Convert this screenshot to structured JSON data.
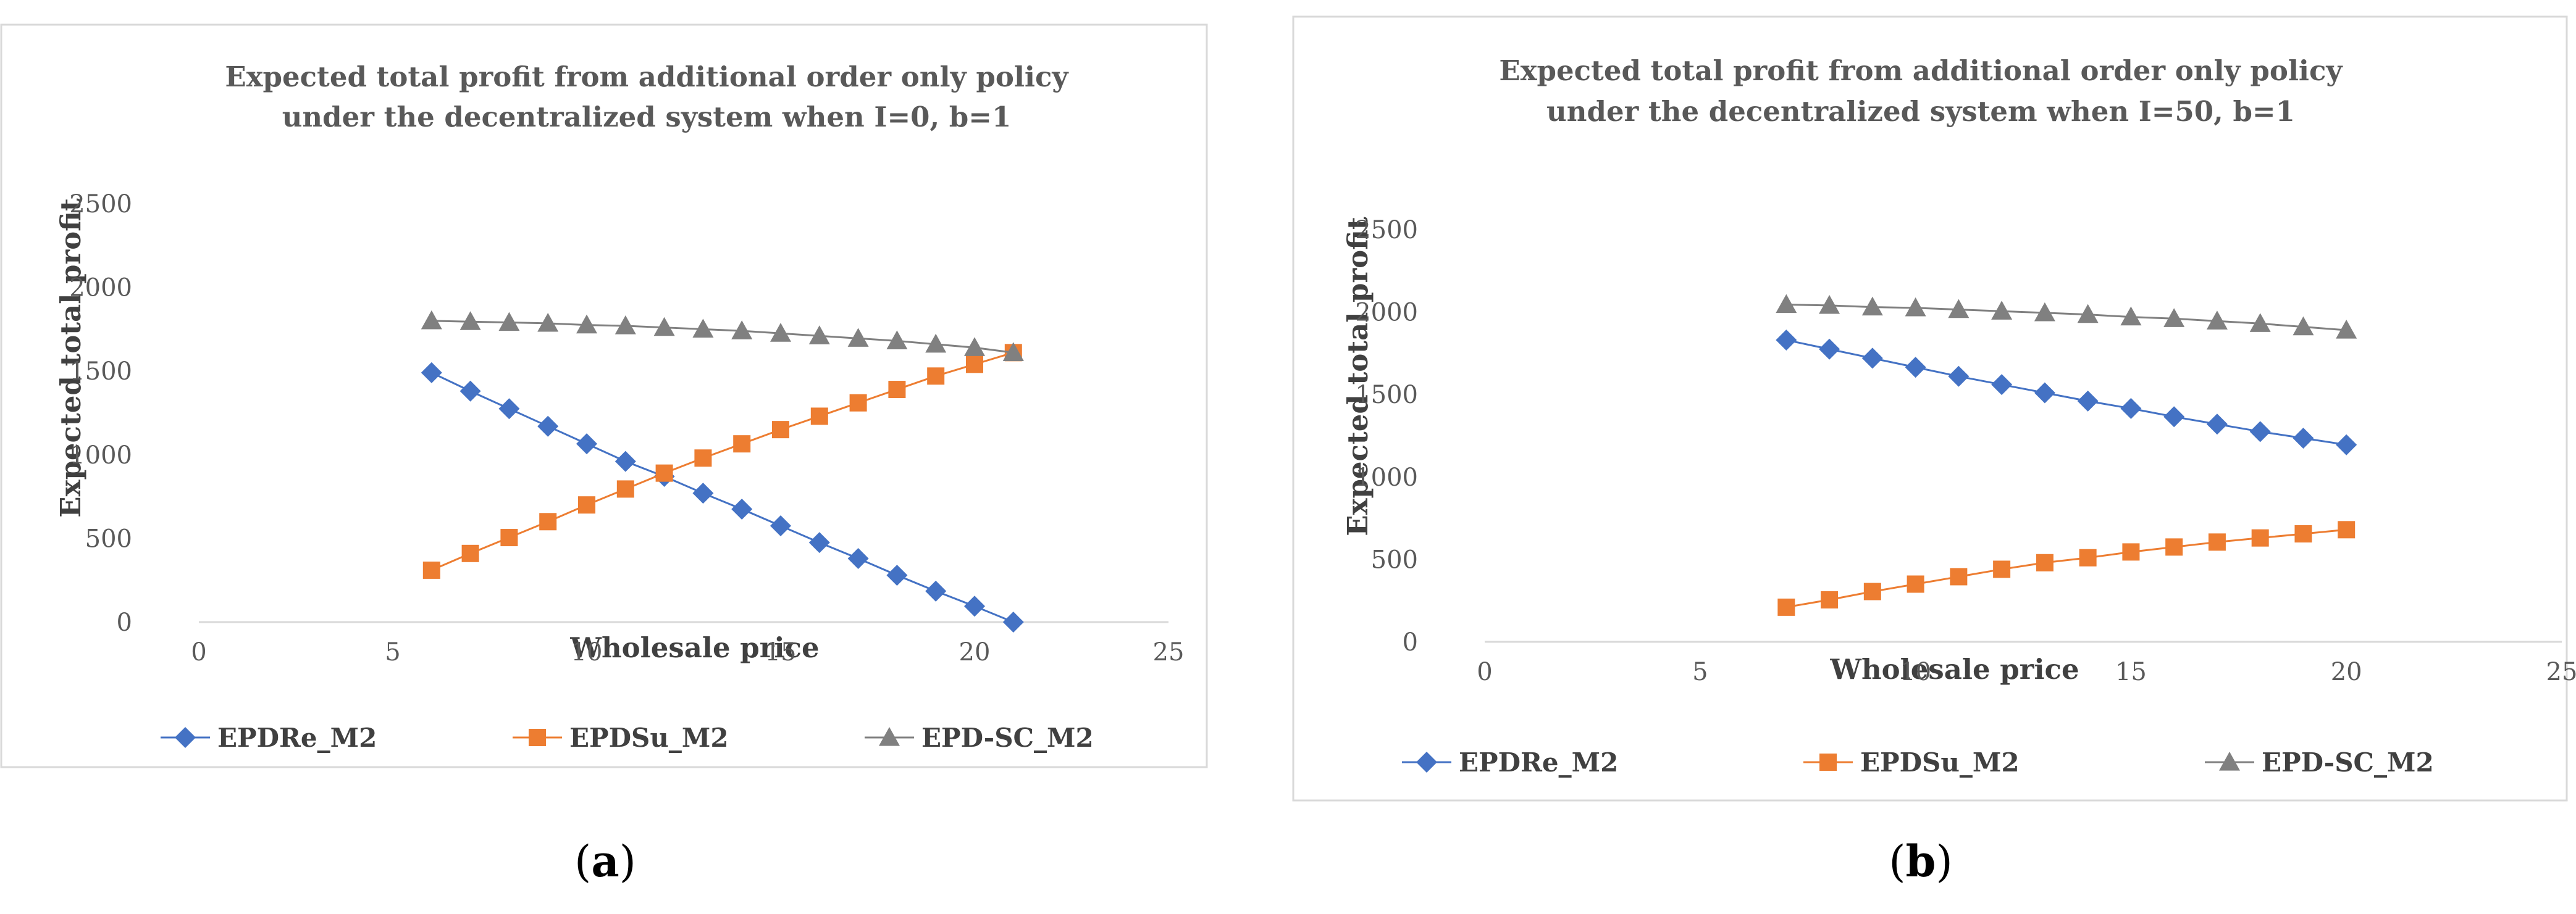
{
  "colors": {
    "EPDRe_M2": "#4472C4",
    "EPDSu_M2": "#ED7D31",
    "EPD-SC_M2": "#808080",
    "frame": "#D9D9D9",
    "axis": "#D9D9D9",
    "text": "#595959"
  },
  "panels": [
    {
      "caption_pre": "(",
      "caption_letter": "a",
      "caption_post": ")"
    },
    {
      "caption_pre": "(",
      "caption_letter": "b",
      "caption_post": ")"
    }
  ],
  "chart_data": [
    {
      "type": "line",
      "title_line1": "Expected total profit from additional order only policy",
      "title_line2": "under the decentralized system when I=0, b=1",
      "xlabel": "Wholesale price",
      "ylabel": "Expected total profit",
      "xlim": [
        0,
        25
      ],
      "ylim": [
        0,
        2500
      ],
      "xticks": [
        0,
        5,
        10,
        15,
        20,
        25
      ],
      "yticks": [
        0,
        500,
        1000,
        1500,
        2000,
        2500
      ],
      "grid": false,
      "legend_position": "bottom",
      "x": [
        6,
        7,
        8,
        9,
        10,
        11,
        12,
        13,
        14,
        15,
        16,
        17,
        18,
        19,
        20,
        21
      ],
      "series": [
        {
          "name": "EPDRe_M2",
          "marker": "diamond",
          "values": [
            1490,
            1380,
            1275,
            1170,
            1065,
            960,
            870,
            770,
            675,
            575,
            475,
            380,
            280,
            185,
            95,
            0
          ]
        },
        {
          "name": "EPDSu_M2",
          "marker": "square",
          "values": [
            310,
            410,
            505,
            600,
            700,
            795,
            890,
            980,
            1065,
            1150,
            1230,
            1310,
            1390,
            1470,
            1540,
            1610
          ]
        },
        {
          "name": "EPD-SC_M2",
          "marker": "triangle",
          "values": [
            1800,
            1795,
            1790,
            1785,
            1775,
            1770,
            1760,
            1750,
            1740,
            1725,
            1710,
            1695,
            1680,
            1660,
            1640,
            1610
          ]
        }
      ]
    },
    {
      "type": "line",
      "title_line1": "Expected total profit from additional order  only policy",
      "title_line2": "under the decentralized system when I=50, b=1",
      "xlabel": "Wholesale price",
      "ylabel": "Expected total profit",
      "xlim": [
        0,
        25
      ],
      "ylim": [
        0,
        2500
      ],
      "xticks": [
        0,
        5,
        10,
        15,
        20,
        25
      ],
      "yticks": [
        0,
        500,
        1000,
        1500,
        2000,
        2500
      ],
      "grid": false,
      "legend_position": "bottom",
      "x": [
        7,
        8,
        9,
        10,
        11,
        12,
        13,
        14,
        15,
        16,
        17,
        18,
        19,
        20
      ],
      "series": [
        {
          "name": "EPDRe_M2",
          "marker": "diamond",
          "values": [
            1830,
            1775,
            1720,
            1665,
            1610,
            1560,
            1510,
            1460,
            1415,
            1365,
            1320,
            1275,
            1235,
            1195
          ]
        },
        {
          "name": "EPDSu_M2",
          "marker": "square",
          "values": [
            210,
            255,
            305,
            350,
            395,
            440,
            480,
            510,
            545,
            575,
            605,
            630,
            655,
            680
          ]
        },
        {
          "name": "EPD-SC_M2",
          "marker": "triangle",
          "values": [
            2045,
            2040,
            2030,
            2025,
            2015,
            2005,
            1995,
            1985,
            1970,
            1960,
            1945,
            1930,
            1910,
            1890
          ]
        }
      ]
    }
  ]
}
